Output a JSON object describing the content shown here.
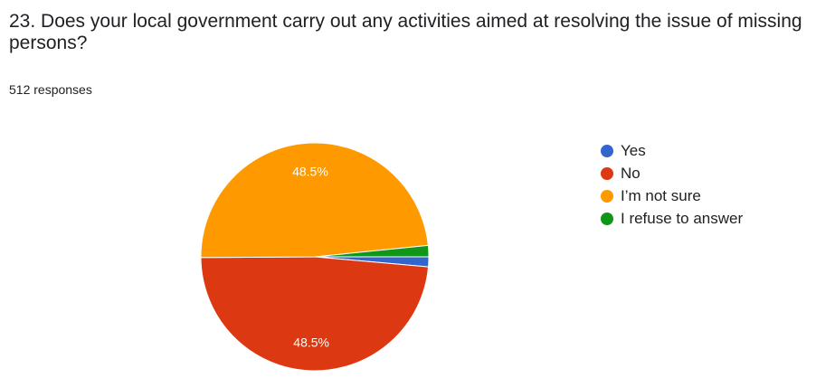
{
  "question": {
    "title": "23. Does your local government carry out any activities aimed at resolving the issue of missing persons?",
    "responses": "512 responses"
  },
  "chart_data": {
    "type": "pie",
    "title": "",
    "categories": [
      "Yes",
      "No",
      "I’m not sure",
      "I refuse to answer"
    ],
    "values": [
      1.4,
      48.5,
      48.5,
      1.6
    ],
    "value_labels": [
      "",
      "48.5%",
      "48.5%",
      ""
    ],
    "colors": [
      "#3366cc",
      "#dc3912",
      "#ff9900",
      "#109618"
    ],
    "legend_position": "right"
  }
}
